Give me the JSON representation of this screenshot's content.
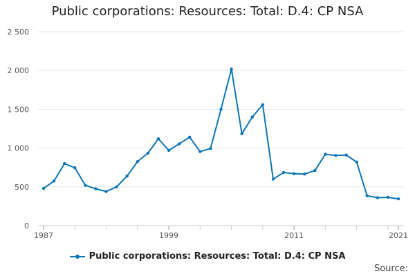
{
  "chart_data": {
    "type": "line",
    "title": "Public corporations: Resources: Total: D.4: CP NSA",
    "xlabel": "",
    "ylabel": "",
    "xlim": [
      1987,
      2021
    ],
    "ylim": [
      0,
      2500
    ],
    "x_ticks": [
      "1987",
      "1999",
      "2011",
      "2021"
    ],
    "y_ticks": [
      "0",
      "500",
      "1 000",
      "1 500",
      "2 000",
      "2 500"
    ],
    "grid": true,
    "legend_position": "bottom",
    "series": [
      {
        "name": "Public corporations: Resources: Total: D.4: CP NSA",
        "color": "#0b75b8",
        "x": [
          1987,
          1988,
          1989,
          1990,
          1991,
          1992,
          1993,
          1994,
          1995,
          1996,
          1997,
          1998,
          1999,
          2000,
          2001,
          2002,
          2003,
          2004,
          2005,
          2006,
          2007,
          2008,
          2009,
          2010,
          2011,
          2012,
          2013,
          2014,
          2015,
          2016,
          2017,
          2018,
          2019,
          2020,
          2021
        ],
        "values": [
          480,
          575,
          800,
          745,
          520,
          475,
          440,
          500,
          640,
          825,
          935,
          1120,
          970,
          1055,
          1140,
          955,
          995,
          1500,
          2020,
          1185,
          1400,
          1560,
          600,
          685,
          670,
          665,
          710,
          920,
          905,
          910,
          820,
          385,
          360,
          365,
          345
        ]
      }
    ]
  },
  "source_label": "Source:"
}
